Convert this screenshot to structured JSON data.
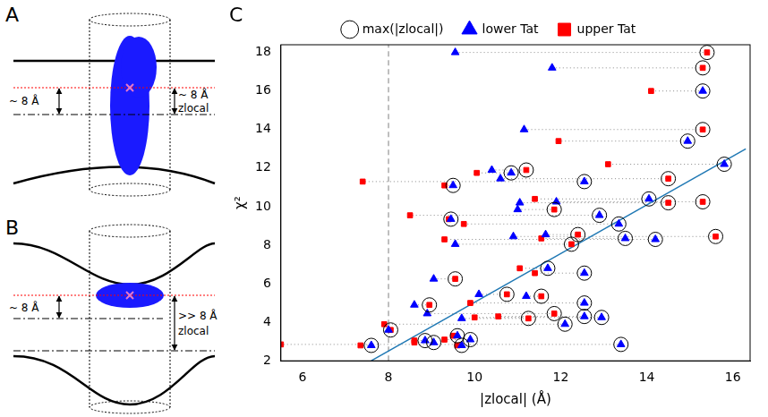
{
  "panels": {
    "A": {
      "letter": "A",
      "left_label": "~ 8 Å",
      "right_label": "~ 8 Å",
      "z_label": "zlocal"
    },
    "B": {
      "letter": "B",
      "left_label": "~ 8 Å",
      "right_label": ">> 8 Å",
      "z_label": "zlocal"
    }
  },
  "chart_data": {
    "type": "scatter",
    "letter": "C",
    "x_label": "|zlocal| (Å)",
    "y_label": "χ²",
    "xlim": [
      5.5,
      16.4
    ],
    "xticks": [
      6,
      8,
      10,
      12,
      14,
      16
    ],
    "ylim": [
      2,
      18.4
    ],
    "yticks": [
      2,
      4,
      6,
      8,
      10,
      12,
      14,
      16,
      18
    ],
    "grid": false,
    "legend": "top",
    "y": [
      18.0,
      17.2,
      16.0,
      14.0,
      13.4,
      12.2,
      11.9,
      11.75,
      11.45,
      11.3,
      11.1,
      10.4,
      10.25,
      10.2,
      9.85,
      9.55,
      9.35,
      9.1,
      8.55,
      8.45,
      8.35,
      8.3,
      8.05,
      6.8,
      6.55,
      6.25,
      5.45,
      5.35,
      5.0,
      4.9,
      4.45,
      4.3,
      4.25,
      4.2,
      3.9,
      3.6,
      3.3,
      3.1,
      3.05,
      2.95,
      2.85,
      2.8,
      2.8
    ],
    "series": [
      {
        "name": "lower Tat",
        "color": "#0000ff",
        "marker": "triangle",
        "x": [
          9.55,
          11.8,
          15.3,
          11.15,
          14.95,
          15.8,
          10.4,
          10.85,
          10.6,
          12.55,
          9.5,
          14.05,
          11.9,
          11.05,
          11.0,
          12.9,
          9.45,
          13.35,
          11.65,
          10.9,
          13.5,
          14.2,
          9.55,
          11.7,
          12.55,
          9.05,
          10.1,
          11.2,
          12.55,
          8.6,
          8.9,
          12.55,
          12.95,
          9.7,
          12.1,
          8.0,
          9.6,
          9.9,
          8.85,
          9.05,
          13.4,
          7.6,
          9.7
        ]
      },
      {
        "name": "upper Tat",
        "color": "#ff0000",
        "marker": "square",
        "x": [
          15.4,
          15.3,
          14.1,
          15.3,
          11.95,
          13.1,
          11.2,
          10.05,
          14.5,
          7.4,
          9.3,
          11.4,
          15.3,
          14.5,
          11.85,
          8.5,
          9.4,
          9.75,
          12.4,
          15.6,
          11.55,
          9.3,
          12.25,
          11.05,
          11.4,
          9.55,
          10.75,
          11.55,
          9.9,
          8.95,
          11.85,
          10.55,
          10.0,
          11.25,
          7.9,
          8.05,
          9.5,
          9.3,
          8.6,
          8.6,
          5.5,
          7.35,
          9.6
        ]
      }
    ],
    "max_marker": {
      "name": "max(|zlocal|)",
      "color": "#000000",
      "marker": "circle"
    },
    "pair_line": {
      "color": "#888888",
      "line_style": "dotted"
    },
    "vline": {
      "x": 8,
      "color": "#aaaaaa",
      "line_style": "dashed"
    },
    "fit": {
      "x": [
        7.6,
        16.3
      ],
      "y": [
        2,
        13
      ],
      "color": "#1f78b4",
      "line_style": "solid"
    }
  }
}
